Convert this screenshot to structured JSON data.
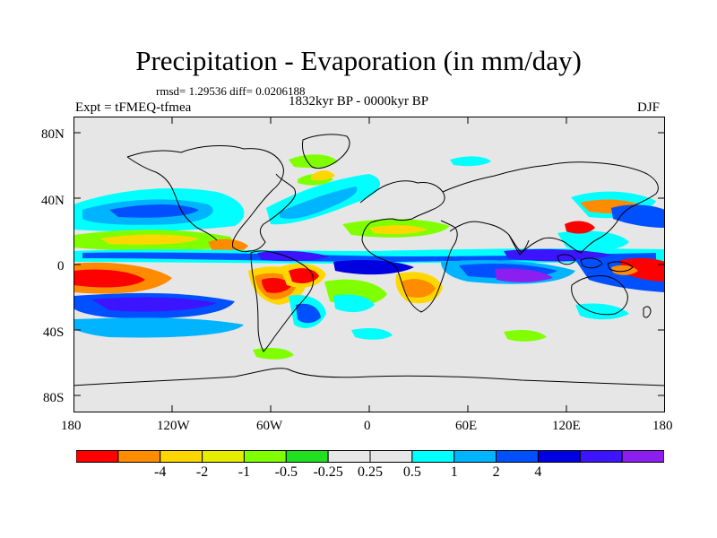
{
  "title": "Precipitation - Evaporation (in mm/day)",
  "stats": "rmsd= 1.29536 diff= 0.0206188",
  "period": "1832kyr BP - 0000kyr BP",
  "experiment": "Expt = tFMEQ-tfmea",
  "season": "DJF",
  "lat_labels": [
    "80N",
    "40N",
    "0",
    "40S",
    "80S"
  ],
  "lon_labels": [
    "180",
    "120W",
    "60W",
    "0",
    "60E",
    "120E",
    "180"
  ],
  "colorbar": {
    "colors": [
      "#ff0000",
      "#ff8c00",
      "#ffd700",
      "#e6ee00",
      "#80ff00",
      "#20e020",
      "#e6e6e6",
      "#e6e6e6",
      "#00ffff",
      "#00b4ff",
      "#0050ff",
      "#0000e0",
      "#3c14ff",
      "#8c1ef0"
    ],
    "labels": [
      "-4",
      "-2",
      "-1",
      "-0.5",
      "-0.25",
      "0.25",
      "0.5",
      "1",
      "2",
      "4"
    ]
  },
  "colors": {
    "land_and_neutral": "#e6e6e6",
    "strong_dry": "#ff0000",
    "dry": "#ff8c00",
    "moderate_dry": "#ffd700",
    "weak_dry": "#80ff00",
    "weak_wet": "#00ffff",
    "wet": "#0050ff",
    "strong_wet": "#0000e0",
    "very_wet": "#8c1ef0"
  }
}
